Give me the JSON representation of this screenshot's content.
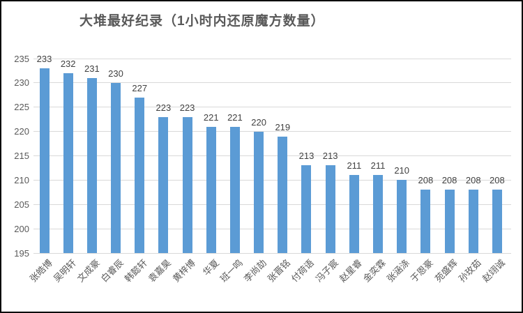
{
  "chart_data": {
    "type": "bar",
    "title": "大堆最好纪录（1小时内还原魔方数量）",
    "categories": [
      "张皓博",
      "吴明轩",
      "文成豪",
      "白睿辰",
      "韩懿轩",
      "袁嘉昊",
      "黄梓博",
      "华夏",
      "班一鸣",
      "李尚劼",
      "张晋铭",
      "付荷语",
      "冯子宸",
      "赵星睿",
      "金奕霖",
      "张涵涤",
      "于恩豪",
      "苑盛辉",
      "孙玫茹",
      "赵翊诚"
    ],
    "values": [
      233,
      232,
      231,
      230,
      227,
      223,
      223,
      221,
      221,
      220,
      219,
      213,
      213,
      211,
      211,
      210,
      208,
      208,
      208,
      208
    ],
    "xlabel": "",
    "ylabel": "",
    "ylim": [
      195,
      235
    ],
    "yticks": [
      195,
      200,
      205,
      210,
      215,
      220,
      225,
      230,
      235
    ],
    "grid": true,
    "legend": "none",
    "data_labels": true,
    "bar_color": "#5b9bd5",
    "gridline_color": "#d9d9d9",
    "value_label_color": "#404040",
    "axis_label_color": "#595959",
    "title_color": "#595959"
  }
}
